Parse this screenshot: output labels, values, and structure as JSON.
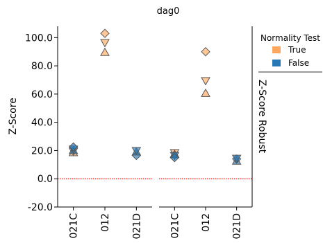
{
  "chart_data": {
    "type": "scatter",
    "title": "dag0",
    "ylabel": "Z-Score",
    "ylim": [
      -20,
      108
    ],
    "yticks": [
      "-20.0",
      "0.0",
      "20.0",
      "40.0",
      "60.0",
      "80.0",
      "100.0"
    ],
    "ytick_values": [
      -20,
      0,
      20,
      40,
      60,
      80,
      100
    ],
    "reference_line": {
      "y": 0,
      "color": "#ff0000",
      "style": "dotted"
    },
    "grid": false,
    "legend": {
      "title": "Normality Test",
      "placement": "top-right",
      "entries": [
        {
          "label": "True",
          "color": "#ffa75e"
        },
        {
          "label": "False",
          "color": "#2878b5"
        }
      ]
    },
    "facet_label": "Z-Score Robust",
    "panels": [
      {
        "categories": [
          "021C",
          "012",
          "021D"
        ],
        "points": [
          {
            "category": "021C",
            "y": 18.5,
            "marker": "triangle-up",
            "normality": "True"
          },
          {
            "category": "021C",
            "y": 19.5,
            "marker": "triangle-down",
            "normality": "True"
          },
          {
            "category": "021C",
            "y": 20.0,
            "marker": "triangle-up",
            "normality": "False"
          },
          {
            "category": "021C",
            "y": 21.0,
            "marker": "triangle-down",
            "normality": "False"
          },
          {
            "category": "021C",
            "y": 22.5,
            "marker": "diamond",
            "normality": "False"
          },
          {
            "category": "012",
            "y": 103.0,
            "marker": "diamond",
            "normality": "True"
          },
          {
            "category": "012",
            "y": 96.5,
            "marker": "triangle-down",
            "normality": "True"
          },
          {
            "category": "012",
            "y": 89.5,
            "marker": "triangle-up",
            "normality": "True"
          },
          {
            "category": "021D",
            "y": 16.5,
            "marker": "diamond",
            "normality": "False"
          },
          {
            "category": "021D",
            "y": 19.0,
            "marker": "triangle-up",
            "normality": "False"
          },
          {
            "category": "021D",
            "y": 20.0,
            "marker": "triangle-down",
            "normality": "False"
          }
        ]
      },
      {
        "categories": [
          "021C",
          "012",
          "021D"
        ],
        "points": [
          {
            "category": "021C",
            "y": 17.5,
            "marker": "triangle-up",
            "normality": "True"
          },
          {
            "category": "021C",
            "y": 18.5,
            "marker": "triangle-down",
            "normality": "True"
          },
          {
            "category": "021C",
            "y": 17.0,
            "marker": "triangle-up",
            "normality": "False"
          },
          {
            "category": "021C",
            "y": 16.5,
            "marker": "triangle-down",
            "normality": "False"
          },
          {
            "category": "021C",
            "y": 15.0,
            "marker": "diamond",
            "normality": "False"
          },
          {
            "category": "012",
            "y": 90.0,
            "marker": "diamond",
            "normality": "True"
          },
          {
            "category": "012",
            "y": 69.5,
            "marker": "triangle-down",
            "normality": "True"
          },
          {
            "category": "012",
            "y": 60.5,
            "marker": "triangle-up",
            "normality": "True"
          },
          {
            "category": "021D",
            "y": 12.5,
            "marker": "triangle-up",
            "normality": "False"
          },
          {
            "category": "021D",
            "y": 14.0,
            "marker": "diamond",
            "normality": "False"
          },
          {
            "category": "021D",
            "y": 14.5,
            "marker": "triangle-down",
            "normality": "False"
          }
        ]
      }
    ]
  }
}
